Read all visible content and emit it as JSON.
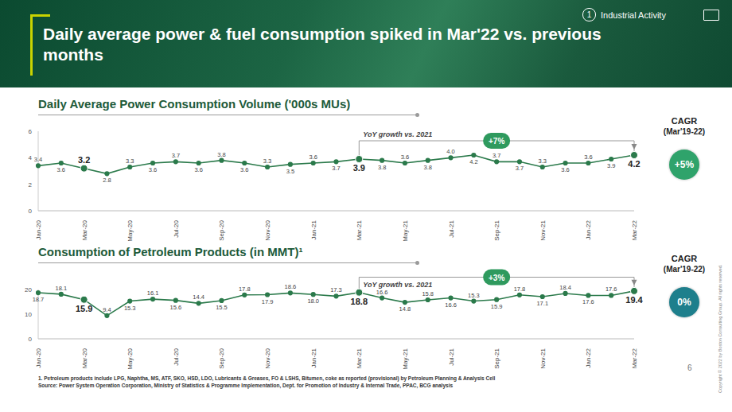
{
  "header": {
    "title": "Daily average power & fuel consumption spiked in Mar'22 vs. previous months",
    "section_number": "1",
    "section": "Industrial Activity"
  },
  "chart_data": [
    {
      "type": "line",
      "title": "Daily Average Power Consumption Volume ('000s MUs)",
      "categories": [
        "Jan-20",
        null,
        "Mar-20",
        null,
        "May-20",
        null,
        "Jul-20",
        null,
        "Sep-20",
        null,
        "Nov-20",
        null,
        "Jan-21",
        null,
        "Mar-21",
        null,
        "May-21",
        null,
        "Jul-21",
        null,
        "Sep-21",
        null,
        "Nov-21",
        null,
        "Jan-22",
        null,
        "Mar-22"
      ],
      "values": [
        3.4,
        3.6,
        3.2,
        2.8,
        3.3,
        3.6,
        3.7,
        3.6,
        3.8,
        3.6,
        3.3,
        3.5,
        3.6,
        3.7,
        3.9,
        3.8,
        3.6,
        3.8,
        4.0,
        4.2,
        3.7,
        3.7,
        3.3,
        3.6,
        3.6,
        3.9,
        4.2
      ],
      "value_labels": [
        "3.4",
        "3.6",
        "3.2",
        "2.8",
        "3.3",
        "3.6",
        "3.7",
        "3.6",
        "3.8",
        "3.6",
        "3.3",
        "3.5",
        "3.6",
        "3.7",
        "3.9",
        "3.8",
        "3.6",
        "3.8",
        "4.0",
        "4.2",
        "3.7",
        "3.7",
        "3.3",
        "3.6",
        "3.6",
        "3.9",
        "4.2"
      ],
      "color": "#2b7a4b",
      "marker": "circle",
      "line_style": "solid",
      "ylim": [
        0,
        6
      ],
      "yticks": [
        0,
        2,
        4,
        6
      ],
      "grid": false,
      "data_labels": true,
      "annotations": {
        "yoy": {
          "text": "YoY growth vs. 2021",
          "from": "Mar-21",
          "to": "Mar-22",
          "label": "+7%",
          "color": "#2f9a5e"
        },
        "cagr": {
          "title": "CAGR",
          "period": "(Mar'19-22)",
          "label": "+5%",
          "color": "#2fa36b"
        }
      }
    },
    {
      "type": "line",
      "title": "Consumption of Petroleum Products (in MMT)¹",
      "categories": [
        "Jan-20",
        null,
        "Mar-20",
        null,
        "May-20",
        null,
        "Jul-20",
        null,
        "Sep-20",
        null,
        "Nov-20",
        null,
        "Jan-21",
        null,
        "Mar-21",
        null,
        "May-21",
        null,
        "Jul-21",
        null,
        "Sep-21",
        null,
        "Nov-21",
        null,
        "Jan-22",
        null,
        "Mar-22"
      ],
      "values": [
        18.7,
        18.1,
        15.9,
        9.4,
        15.3,
        16.1,
        15.6,
        14.4,
        15.5,
        17.8,
        17.9,
        18.6,
        18.0,
        17.3,
        18.8,
        16.6,
        14.8,
        15.8,
        16.6,
        15.3,
        15.9,
        17.8,
        17.1,
        18.4,
        17.6,
        17.6,
        19.4
      ],
      "value_labels": [
        "18.7",
        "18.1",
        "15.9",
        "9.4",
        "15.3",
        "16.1",
        "15.6",
        "14.4",
        "15.5",
        "17.8",
        "17.9",
        "18.6",
        "18.0",
        "17.3",
        "18.8",
        "16.6",
        "14.8",
        "15.8",
        "16.6",
        "15.3",
        "15.9",
        "17.8",
        "17.1",
        "18.4",
        "17.6",
        "17.6",
        "19.4"
      ],
      "color": "#2b7a4b",
      "marker": "circle",
      "line_style": "solid",
      "ylim": [
        0,
        20
      ],
      "yticks": [
        0,
        10,
        20
      ],
      "grid": false,
      "data_labels": true,
      "annotations": {
        "yoy": {
          "text": "YoY growth vs. 2021",
          "from": "Mar-21",
          "to": "Mar-22",
          "label": "+3%",
          "color": "#2f9a5e"
        },
        "cagr": {
          "title": "CAGR",
          "period": "(Mar'19-22)",
          "label": "0%",
          "color": "#1e7f8c"
        }
      }
    }
  ],
  "footnote": "1. Petroleum products include LPG, Naphtha, MS, ATF, SKO, HSD, LDO, Lubricants & Greases, FO & LSHS, Bitumen, coke as reported (provisional) by Petroleum Planning & Analysis Cell",
  "source": "Source: Power System Operation Corporation, Ministry of Statistics & Programme Implementation, Dept. for Promotion of Industry & Internal Trade, PPAC, BCG analysis",
  "page_number": "6",
  "copyright": "Copyright © 2022 by Boston Consulting Group. All rights reserved."
}
